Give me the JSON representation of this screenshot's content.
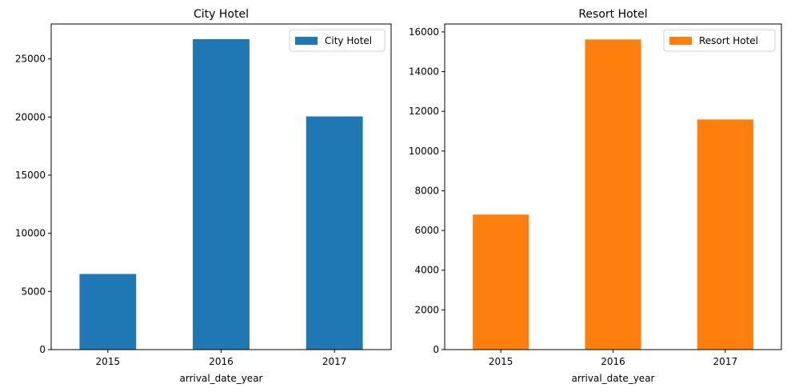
{
  "chart_data": [
    {
      "type": "bar",
      "title": "City Hotel",
      "xlabel": "arrival_date_year",
      "ylabel": "",
      "categories": [
        "2015",
        "2016",
        "2017"
      ],
      "series": [
        {
          "name": "City Hotel",
          "values": [
            6500,
            26700,
            20050
          ]
        }
      ],
      "ylim": [
        0,
        28000
      ],
      "yticks": [
        0,
        5000,
        10000,
        15000,
        20000,
        25000
      ],
      "color": "#1f77b4",
      "legend": "top-right",
      "grid": false
    },
    {
      "type": "bar",
      "title": "Resort Hotel",
      "xlabel": "arrival_date_year",
      "ylabel": "",
      "categories": [
        "2015",
        "2016",
        "2017"
      ],
      "series": [
        {
          "name": "Resort Hotel",
          "values": [
            6800,
            15620,
            11590
          ]
        }
      ],
      "ylim": [
        0,
        16400
      ],
      "yticks": [
        0,
        2000,
        4000,
        6000,
        8000,
        10000,
        12000,
        14000,
        16000
      ],
      "color": "#ff7f0e",
      "legend": "top-right",
      "grid": false
    }
  ]
}
